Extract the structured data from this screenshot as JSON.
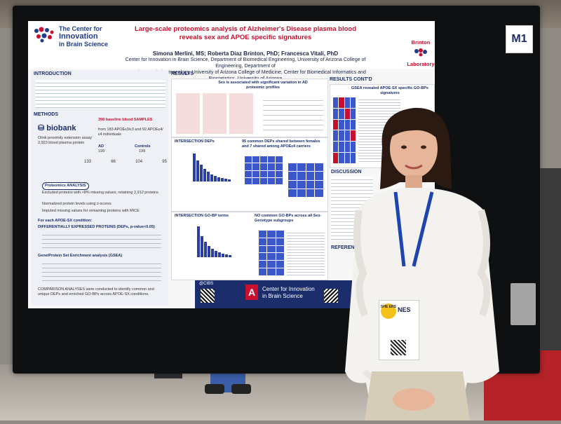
{
  "poster": {
    "org_line1": "The Center for",
    "org_line2": "Innovation",
    "org_line3": "in Brain Science",
    "title_line1": "Large-scale proteomics analysis of Alzheimer's Disease plasma blood",
    "title_line2": "reveals sex and APOE specific signatures",
    "authors": "Simona Merlini, MS; Roberta Diaz Brinton, PhD; Francesca Vitali, PhD",
    "affil1": "Center for Innovation in Brain Science, Department of Biomedical Engineering, University of Arizona College of Engineering, Department of",
    "affil2": "Neurology and Pharmacology, University of Arizona College of Medicine, Center for Biomedical Informatics and Biostatistics, University of Arizona",
    "lab_line1": "Brinton",
    "lab_line2": "Laboratory",
    "intro_head": "INTRODUCTION",
    "methods_head": "METHODS",
    "biobank": "biobank",
    "samples_head": "398 baseline blood SAMPLES",
    "samples_sub": "from 183 APOEε3/ε3 and 92 APOEε4/ε4 individuals",
    "olink": "Olink proximity extension assay 2,923 blood plasma protein",
    "ad_label": "AD",
    "ad_n": "199",
    "controls_label": "Controls",
    "controls_n": "199",
    "counts": [
      "133",
      "66",
      "104",
      "95"
    ],
    "proteomics_head": "Proteomics ANALYSIS",
    "proteomics_1": "Excluded proteins with >8% missing values, retaining 2,912 proteins",
    "proteomics_2": "Normalized protein levels using z-scores",
    "proteomics_3": "Imputed missing values for remaining proteins with MICE",
    "each_cond": "For each APOE-SX condition:",
    "dep_head": "DIFFERENTIALLY EXPRESSED PROTEINS (DEPs, p-value<0.05)",
    "gsea_head": "Gene/Protein Set Enrichment analysis (GSEA)",
    "comparison": "COMPARISON ANALYSES were conducted to identify common and unique DEPs and enriched GO-BPs across APOE-SX conditions.",
    "results_head": "RESULTS",
    "results_sub": "Sex is associated with significant variation in AD proteomic profiles",
    "intersection_deps": "INTERSECTION DEPs",
    "common_deps": "95 common DEPs shared between females and 7 shared among APOEε4 carriers",
    "intersection_gobp": "INTERSECTION GO-BP terms",
    "no_common": "NO common GO-BPs across all Sex-Genotype subgroups",
    "results_contd": "RESULTS CONT'D",
    "gsea_sig": "GSEA revealed APOE-SX specific GO-BPs signatures",
    "discussion": "DISCUSSION",
    "references": "REFERENCES",
    "footer_org": "Center for Innovation in Brain Science",
    "footer_handle": "@CIBS"
  },
  "booth_sign": "M1",
  "badge": {
    "logo": "SHE ERS",
    "letters": "NES"
  },
  "colors": {
    "title_red": "#c8102e",
    "navy": "#1b2e6b",
    "board": "#0f1012",
    "carpet": "#b52328"
  }
}
